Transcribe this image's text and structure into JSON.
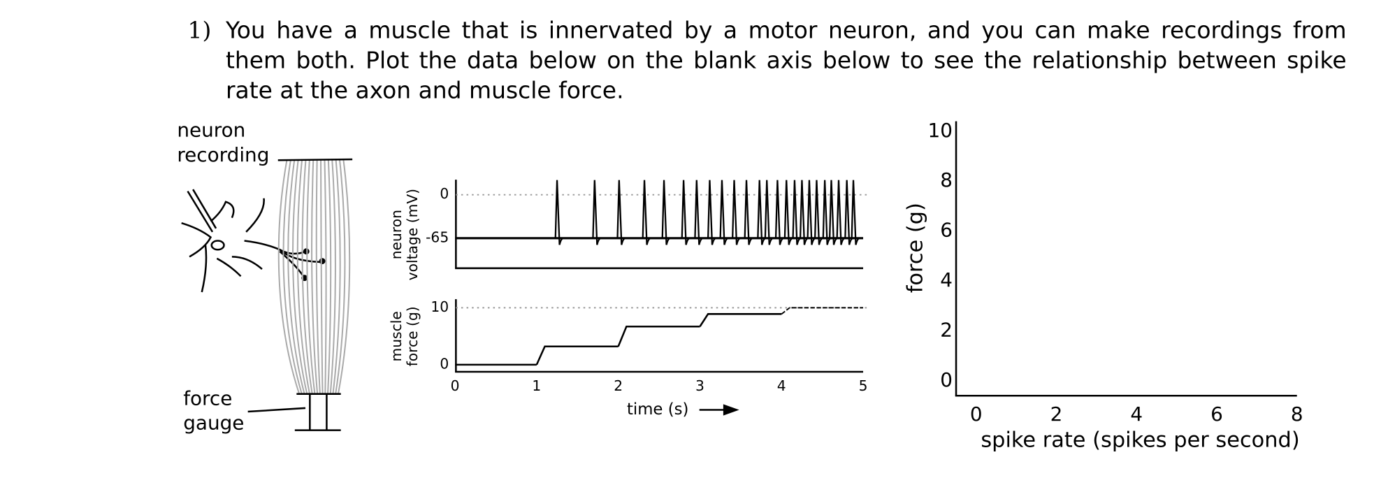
{
  "question": {
    "number": "1)",
    "text": "You have a muscle that is innervated by a motor neuron, and you can make recordings from them both. Plot the data below on the blank axis below to see the relationship between spike rate at the axon and muscle force."
  },
  "diagram": {
    "neuron_label": [
      "neuron",
      "recording"
    ],
    "gauge_label": [
      "force",
      "gauge"
    ]
  },
  "voltage_plot": {
    "ylabel": [
      "neuron",
      "voltage (mV)"
    ],
    "yticks": [
      0,
      -65
    ],
    "ylim": [
      -110,
      22.5
    ],
    "resting_potential": -65,
    "spike_peak": 22,
    "undershoot": -75,
    "spike_times": [
      1.25,
      1.71,
      2.01,
      2.32,
      2.56,
      2.8,
      2.96,
      3.12,
      3.27,
      3.42,
      3.57,
      3.73,
      3.82,
      3.95,
      4.06,
      4.16,
      4.25,
      4.34,
      4.43,
      4.53,
      4.61,
      4.7,
      4.8,
      4.88
    ]
  },
  "force_plot": {
    "ylabel": [
      "muscle",
      "force (g)"
    ],
    "yticks": [
      10,
      0
    ],
    "ylim": [
      -1.25,
      11.5
    ],
    "xticks": [
      0,
      1,
      2,
      3,
      4,
      5
    ],
    "xlim": [
      0,
      5
    ],
    "xlabel": "time (s)",
    "initial_force": 0,
    "steps": [
      {
        "t": 1,
        "force": 3.2
      },
      {
        "t": 2,
        "force": 6.7
      },
      {
        "t": 3,
        "force": 8.9
      },
      {
        "t": 4,
        "force": 10
      }
    ]
  },
  "answer_plot": {
    "xlabel": "spike rate (spikes per second)",
    "ylabel": "force (g)",
    "xticks": [
      0,
      2,
      4,
      6,
      8
    ],
    "xlim": [
      -0.5,
      8
    ],
    "yticks": [
      0,
      2,
      4,
      6,
      8,
      10
    ],
    "ylim": [
      -0.6,
      10.4
    ]
  }
}
